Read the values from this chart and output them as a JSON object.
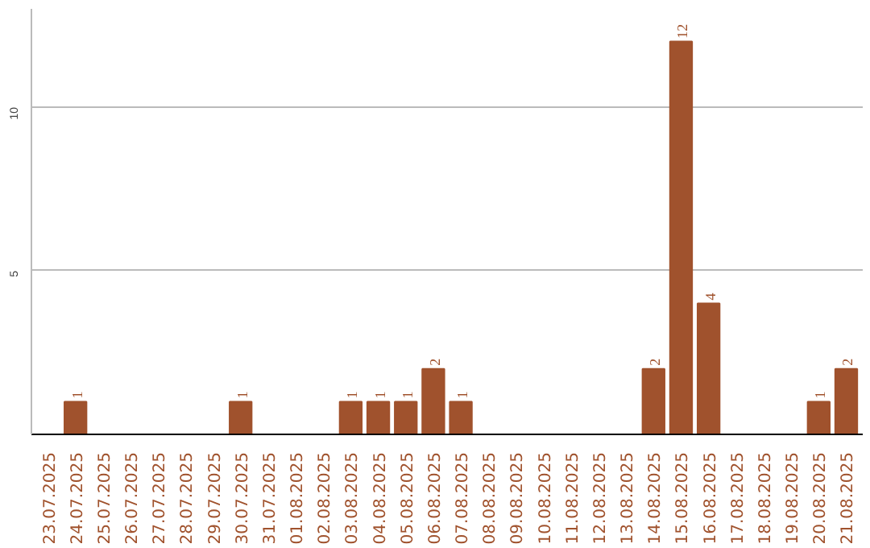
{
  "chart_data": {
    "type": "bar",
    "categories": [
      "23.07.2025",
      "24.07.2025",
      "25.07.2025",
      "26.07.2025",
      "27.07.2025",
      "28.07.2025",
      "29.07.2025",
      "30.07.2025",
      "31.07.2025",
      "01.08.2025",
      "02.08.2025",
      "03.08.2025",
      "04.08.2025",
      "05.08.2025",
      "06.08.2025",
      "07.08.2025",
      "08.08.2025",
      "09.08.2025",
      "10.08.2025",
      "11.08.2025",
      "12.08.2025",
      "13.08.2025",
      "14.08.2025",
      "15.08.2025",
      "16.08.2025",
      "17.08.2025",
      "18.08.2025",
      "19.08.2025",
      "20.08.2025",
      "21.08.2025"
    ],
    "values": [
      0,
      1,
      0,
      0,
      0,
      0,
      0,
      1,
      0,
      0,
      0,
      1,
      1,
      1,
      2,
      1,
      0,
      0,
      0,
      0,
      0,
      0,
      2,
      12,
      4,
      0,
      0,
      0,
      1,
      2
    ],
    "value_labels": [
      null,
      "1",
      null,
      null,
      null,
      null,
      null,
      "1",
      null,
      null,
      null,
      "1",
      "1",
      "1",
      "2",
      "1",
      null,
      null,
      null,
      null,
      null,
      null,
      "2",
      "12",
      "4",
      null,
      null,
      null,
      "1",
      "2"
    ],
    "color": "#a0522d",
    "ylim": [
      0,
      13
    ],
    "yticks": [
      5,
      10
    ],
    "grid": "y"
  }
}
